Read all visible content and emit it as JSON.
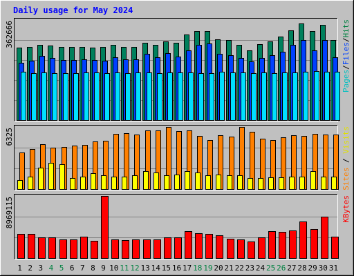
{
  "title": "Daily usage for May 2024",
  "colors": {
    "background": "#c0c0c0",
    "plot_bg": "#c0c0c0",
    "title": "#0000ff",
    "hits": "#00805c",
    "files": "#0040ff",
    "pages": "#00e0ff",
    "visits": "#ffff00",
    "sites": "#ff8000",
    "kbytes": "#ff0000",
    "weekend_day": "#008040",
    "weekday": "#000000"
  },
  "chart_data": [
    {
      "type": "bar",
      "panel": "requests",
      "ymax_label": "362666",
      "ylim": [
        0,
        362666
      ],
      "right_label_parts": [
        {
          "text": "Pages",
          "color": "#00c0c0"
        },
        {
          "text": "/",
          "color": "#000000"
        },
        {
          "text": "Files",
          "color": "#0040ff"
        },
        {
          "text": "/",
          "color": "#000000"
        },
        {
          "text": "Hits",
          "color": "#008040"
        }
      ],
      "categories": [
        "1",
        "2",
        "3",
        "4",
        "5",
        "6",
        "7",
        "8",
        "9",
        "10",
        "11",
        "12",
        "13",
        "14",
        "15",
        "16",
        "17",
        "18",
        "19",
        "20",
        "21",
        "22",
        "23",
        "24",
        "25",
        "26",
        "27",
        "28",
        "29",
        "30",
        "31"
      ],
      "series": [
        {
          "name": "Hits",
          "values": [
            262000,
            266000,
            273000,
            270000,
            264000,
            265000,
            266000,
            263000,
            265000,
            273000,
            266000,
            265000,
            281000,
            273000,
            285000,
            280000,
            310000,
            322000,
            322000,
            293000,
            289000,
            272000,
            252000,
            276000,
            286000,
            302000,
            325000,
            350000,
            322000,
            346000,
            289000
          ]
        },
        {
          "name": "Files",
          "values": [
            207000,
            215000,
            233000,
            225000,
            218000,
            218000,
            220000,
            217000,
            216000,
            228000,
            220000,
            219000,
            240000,
            228000,
            243000,
            230000,
            252000,
            272000,
            278000,
            240000,
            236000,
            225000,
            213000,
            225000,
            236000,
            247000,
            272000,
            291000,
            252000,
            290000,
            228000
          ]
        },
        {
          "name": "Pages",
          "values": [
            176000,
            171000,
            172000,
            171000,
            170000,
            171000,
            172000,
            173000,
            170000,
            173000,
            170000,
            172000,
            173000,
            171000,
            172000,
            172000,
            172000,
            171000,
            171000,
            174000,
            172000,
            172000,
            171000,
            172000,
            170000,
            172000,
            172000,
            176000,
            177000,
            176000,
            174000
          ]
        }
      ]
    },
    {
      "type": "bar",
      "panel": "visitors",
      "ymax_label": "6325",
      "ylim": [
        0,
        6325
      ],
      "right_label_parts": [
        {
          "text": "Sites",
          "color": "#ff8000"
        },
        {
          "text": " / ",
          "color": "#000000"
        },
        {
          "text": "Visits",
          "color": "#e0e000"
        }
      ],
      "categories": [
        "1",
        "2",
        "3",
        "4",
        "5",
        "6",
        "7",
        "8",
        "9",
        "10",
        "11",
        "12",
        "13",
        "14",
        "15",
        "16",
        "17",
        "18",
        "19",
        "20",
        "21",
        "22",
        "23",
        "24",
        "25",
        "26",
        "27",
        "28",
        "29",
        "30",
        "31"
      ],
      "series": [
        {
          "name": "Sites",
          "values": [
            3700,
            4050,
            4600,
            4200,
            4300,
            4400,
            4500,
            4850,
            4950,
            5600,
            5700,
            5550,
            5950,
            6000,
            6325,
            5900,
            5950,
            5400,
            5000,
            5450,
            5350,
            6300,
            5800,
            5100,
            5000,
            5300,
            5450,
            5400,
            5600,
            5550,
            5550
          ]
        },
        {
          "name": "Visits",
          "values": [
            900,
            1300,
            2200,
            2700,
            2500,
            1100,
            1300,
            1600,
            1400,
            1300,
            1300,
            1400,
            1800,
            1700,
            1400,
            1500,
            1800,
            1700,
            1400,
            1500,
            1400,
            1400,
            1100,
            1100,
            1200,
            1200,
            1300,
            1300,
            1800,
            1300,
            1300
          ]
        }
      ]
    },
    {
      "type": "bar",
      "panel": "kbytes",
      "ymax_label": "8969115",
      "ylim": [
        0,
        8969115
      ],
      "right_label_parts": [
        {
          "text": "KBytes",
          "color": "#ff0000"
        }
      ],
      "categories": [
        "1",
        "2",
        "3",
        "4",
        "5",
        "6",
        "7",
        "8",
        "9",
        "10",
        "11",
        "12",
        "13",
        "14",
        "15",
        "16",
        "17",
        "18",
        "19",
        "20",
        "21",
        "22",
        "23",
        "24",
        "25",
        "26",
        "27",
        "28",
        "29",
        "30",
        "31"
      ],
      "series": [
        {
          "name": "KBytes",
          "values": [
            3450000,
            3450000,
            2980000,
            3000000,
            2680000,
            2650000,
            3050000,
            2500000,
            8969115,
            2650000,
            2600000,
            2700000,
            2700000,
            2650000,
            2950000,
            2950000,
            3850000,
            3550000,
            3500000,
            3250000,
            2800000,
            2650000,
            2350000,
            2950000,
            3900000,
            3800000,
            4000000,
            5250000,
            4200000,
            5950000,
            3050000
          ]
        }
      ]
    }
  ]
}
